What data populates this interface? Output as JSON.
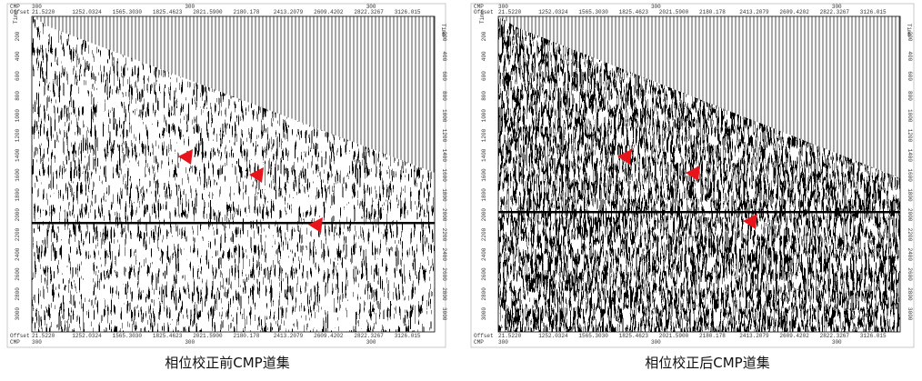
{
  "panels": [
    {
      "caption": "相位校正前CMP道集",
      "cmp_label": "CMP",
      "offset_label": "Offset",
      "time_label": "Time",
      "cmp": "300",
      "offsets": [
        "21.5220",
        "1252.0324",
        "1565.3030",
        "1825.4623",
        "2021.5900",
        "2180.178",
        "2413.2079",
        "2609.4202",
        "2822.3267",
        "3126.015"
      ],
      "time_ticks": [
        "200",
        "400",
        "600",
        "800",
        "1000",
        "1200",
        "1400",
        "1600",
        "1800",
        "2000",
        "2200",
        "2400",
        "2600",
        "2800",
        "3000"
      ]
    },
    {
      "caption": "相位校正后CMP道集",
      "cmp_label": "CMP",
      "offset_label": "Offset",
      "time_label": "Time",
      "cmp": "300",
      "offsets": [
        "21.5220",
        "1252.0324",
        "1565.3030",
        "1825.4623",
        "2021.5900",
        "2180.178",
        "2413.2079",
        "2609.4202",
        "2822.3267",
        "3126.015"
      ],
      "time_ticks": [
        "200",
        "400",
        "600",
        "800",
        "1000",
        "1200",
        "1400",
        "1600",
        "1800",
        "2000",
        "2200",
        "2400",
        "2600",
        "2800",
        "3000"
      ]
    }
  ]
}
